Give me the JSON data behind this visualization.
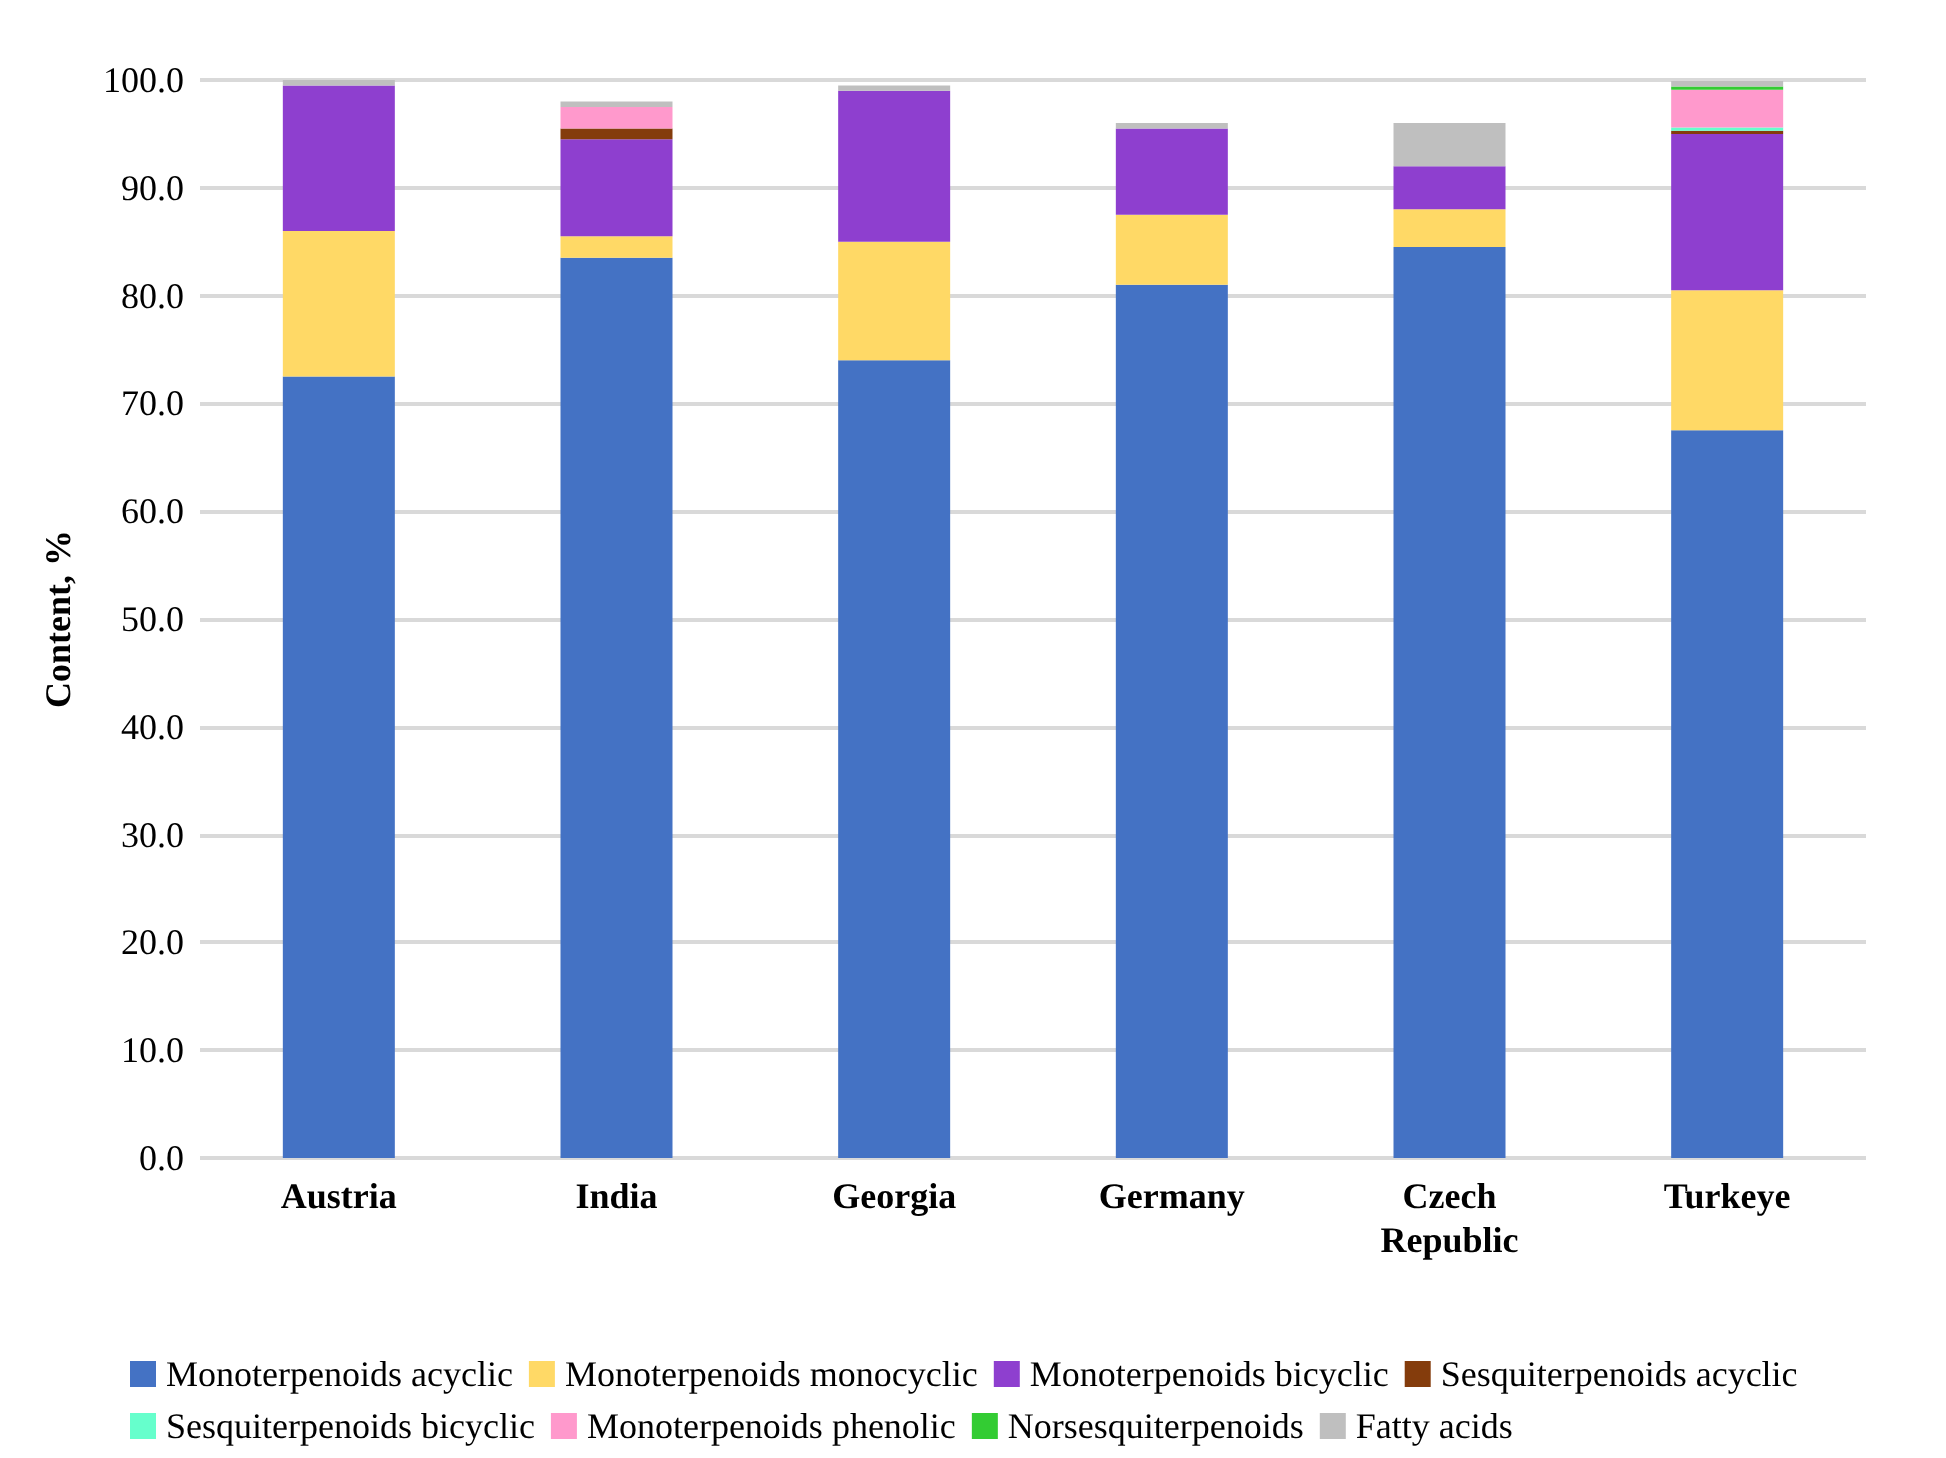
{
  "chart_data": {
    "type": "bar",
    "stacked": true,
    "ylabel": "Content, %",
    "categories": [
      "Austria",
      "India",
      "Georgia",
      "Germany",
      "Czech\nRepublic",
      "Turkeye"
    ],
    "series": [
      {
        "name": "Monoterpenoids acyclic",
        "color": "#4472c4",
        "values": [
          72.5,
          83.5,
          74,
          81,
          84.5,
          67.5
        ]
      },
      {
        "name": "Monoterpenoids monocyclic",
        "color": "#ffd966",
        "values": [
          13.5,
          2,
          11,
          6.5,
          3.5,
          13
        ]
      },
      {
        "name": "Monoterpenoids bicyclic",
        "color": "#8e3fcf",
        "values": [
          13.5,
          9,
          14,
          8,
          4,
          14.5
        ]
      },
      {
        "name": "Sesquiterpenoids acyclic",
        "color": "#843c0c",
        "values": [
          null,
          1,
          null,
          null,
          null,
          0.3
        ]
      },
      {
        "name": "Sesquiterpenoids bicyclic",
        "color": "#66ffcc",
        "values": [
          null,
          null,
          null,
          null,
          null,
          0.3
        ]
      },
      {
        "name": "Monoterpenoids phenolic",
        "color": "#ff99cc",
        "values": [
          null,
          2,
          null,
          null,
          null,
          3.5
        ]
      },
      {
        "name": "Norsesquiterpenoids",
        "color": "#33cc33",
        "values": [
          null,
          null,
          null,
          null,
          null,
          0.3
        ]
      },
      {
        "name": "Fatty acids",
        "color": "#bfbfbf",
        "values": [
          0.5,
          0.5,
          0.5,
          0.5,
          4,
          0.5
        ]
      }
    ],
    "ylim": [
      0,
      100
    ],
    "yticks": [
      {
        "value": 0,
        "label": "0.0"
      },
      {
        "value": 10,
        "label": "10.0"
      },
      {
        "value": 20,
        "label": "20.0"
      },
      {
        "value": 30,
        "label": "30.0"
      },
      {
        "value": 40,
        "label": "40.0"
      },
      {
        "value": 50,
        "label": "50.0"
      },
      {
        "value": 60,
        "label": "60.0"
      },
      {
        "value": 70,
        "label": "70.0"
      },
      {
        "value": 80,
        "label": "80.0"
      },
      {
        "value": 90,
        "label": "90.0"
      },
      {
        "value": 100,
        "label": "100.0"
      }
    ],
    "grid": "y",
    "legend": "bottom"
  }
}
